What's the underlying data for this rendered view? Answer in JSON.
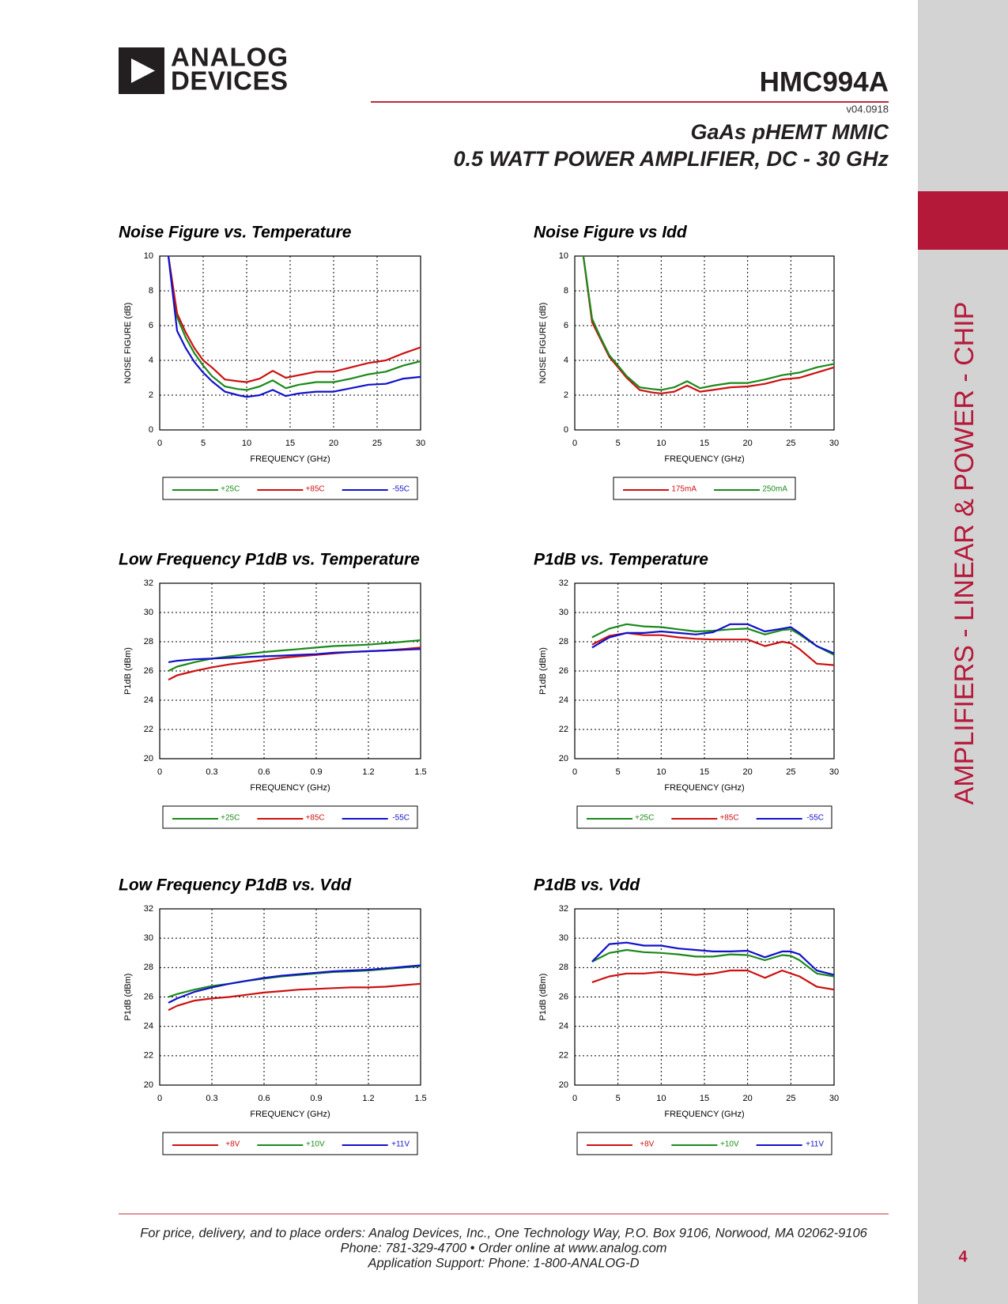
{
  "header": {
    "logo_line1": "ANALOG",
    "logo_line2": "DEVICES",
    "part": "HMC994A",
    "version": "v04.0918",
    "subtitle1": "GaAs pHEMT MMIC",
    "subtitle2": "0.5 WATT POWER AMPLIFIER, DC - 30 GHz"
  },
  "sidebar": {
    "section": "AMPLIFIERS - LINEAR & POWER - CHIP",
    "page": "4"
  },
  "footer": {
    "lines": [
      "For price, delivery, and to place orders: Analog Devices, Inc., One Technology Way, P.O. Box 9106, Norwood, MA 02062-9106",
      "Phone: 781-329-4700 • Order online at www.analog.com",
      "Application Support: Phone: 1-800-ANALOG-D"
    ]
  },
  "chart_data": [
    {
      "type": "line",
      "title": "Noise Figure vs. Temperature",
      "xlabel": "FREQUENCY (GHz)",
      "ylabel": "NOISE FIGURE (dB)",
      "grid": true,
      "legend": "bottom",
      "xlim": [
        0,
        30
      ],
      "ylim": [
        0,
        10
      ],
      "xticks": [
        0,
        5,
        10,
        15,
        20,
        25,
        30
      ],
      "yticks": [
        0,
        2,
        4,
        6,
        8,
        10
      ],
      "x": [
        1,
        2,
        3,
        4,
        5,
        6,
        7.5,
        9,
        10,
        11.5,
        13,
        14.5,
        16,
        18,
        20,
        22,
        24,
        26,
        28,
        30
      ],
      "series": [
        {
          "name": "+25C",
          "color": "#1a8a1a",
          "values": [
            10,
            6.5,
            5.3,
            4.4,
            3.7,
            3.1,
            2.5,
            2.35,
            2.3,
            2.5,
            2.85,
            2.4,
            2.6,
            2.75,
            2.75,
            2.95,
            3.2,
            3.35,
            3.7,
            3.95
          ]
        },
        {
          "name": "+85C",
          "color": "#cc1111",
          "values": [
            10,
            6.7,
            5.6,
            4.7,
            4.0,
            3.6,
            2.9,
            2.8,
            2.75,
            2.95,
            3.4,
            3.0,
            3.15,
            3.35,
            3.35,
            3.6,
            3.85,
            4.0,
            4.4,
            4.75
          ]
        },
        {
          "name": "-55C",
          "color": "#1111cc",
          "values": [
            10,
            5.7,
            4.7,
            3.9,
            3.3,
            2.8,
            2.2,
            2.0,
            1.9,
            2.0,
            2.3,
            1.95,
            2.1,
            2.2,
            2.2,
            2.4,
            2.6,
            2.65,
            2.95,
            3.05
          ]
        }
      ]
    },
    {
      "type": "line",
      "title": "Noise Figure vs Idd",
      "xlabel": "FREQUENCY (GHz)",
      "ylabel": "NOISE FIGURE (dB)",
      "grid": true,
      "legend": "bottom",
      "xlim": [
        0,
        30
      ],
      "ylim": [
        0,
        10
      ],
      "xticks": [
        0,
        5,
        10,
        15,
        20,
        25,
        30
      ],
      "yticks": [
        0,
        2,
        4,
        6,
        8,
        10
      ],
      "x": [
        1,
        2,
        3,
        4,
        5,
        6,
        7.5,
        9,
        10,
        11.5,
        13,
        14.5,
        16,
        18,
        20,
        22,
        24,
        26,
        28,
        30
      ],
      "series": [
        {
          "name": "175mA",
          "color": "#cc1111",
          "values": [
            10,
            6.2,
            5.2,
            4.2,
            3.6,
            3.0,
            2.3,
            2.15,
            2.1,
            2.2,
            2.55,
            2.2,
            2.3,
            2.45,
            2.5,
            2.65,
            2.9,
            3.0,
            3.3,
            3.6
          ]
        },
        {
          "name": "250mA",
          "color": "#1a8a1a",
          "values": [
            10,
            6.4,
            5.3,
            4.3,
            3.7,
            3.1,
            2.45,
            2.35,
            2.3,
            2.45,
            2.8,
            2.4,
            2.55,
            2.7,
            2.7,
            2.9,
            3.15,
            3.3,
            3.6,
            3.8
          ]
        }
      ]
    },
    {
      "type": "line",
      "title": "Low Frequency P1dB vs. Temperature",
      "xlabel": "FREQUENCY (GHz)",
      "ylabel": "P1dB (dBm)",
      "grid": true,
      "legend": "bottom",
      "xlim": [
        0,
        1.5
      ],
      "ylim": [
        20,
        32
      ],
      "xticks": [
        0,
        0.3,
        0.6,
        0.9,
        1.2,
        1.5
      ],
      "yticks": [
        20,
        22,
        24,
        26,
        28,
        30,
        32
      ],
      "x": [
        0.05,
        0.1,
        0.2,
        0.3,
        0.4,
        0.5,
        0.6,
        0.7,
        0.8,
        0.9,
        1.0,
        1.1,
        1.2,
        1.3,
        1.4,
        1.5
      ],
      "series": [
        {
          "name": "+25C",
          "color": "#1a8a1a",
          "values": [
            26.0,
            26.3,
            26.6,
            26.85,
            27.0,
            27.15,
            27.3,
            27.4,
            27.5,
            27.6,
            27.7,
            27.75,
            27.8,
            27.9,
            28.0,
            28.1
          ]
        },
        {
          "name": "+85C",
          "color": "#cc1111",
          "values": [
            25.4,
            25.7,
            26.0,
            26.25,
            26.45,
            26.6,
            26.75,
            26.9,
            27.0,
            27.1,
            27.2,
            27.3,
            27.35,
            27.4,
            27.5,
            27.6
          ]
        },
        {
          "name": "-55C",
          "color": "#1111cc",
          "values": [
            26.6,
            26.7,
            26.8,
            26.85,
            26.9,
            26.95,
            27.0,
            27.05,
            27.1,
            27.15,
            27.25,
            27.3,
            27.35,
            27.4,
            27.45,
            27.5
          ]
        }
      ]
    },
    {
      "type": "line",
      "title": "P1dB vs. Temperature",
      "xlabel": "FREQUENCY (GHz)",
      "ylabel": "P1dB (dBm)",
      "grid": true,
      "legend": "bottom",
      "xlim": [
        0,
        30
      ],
      "ylim": [
        20,
        32
      ],
      "xticks": [
        0,
        5,
        10,
        15,
        20,
        25,
        30
      ],
      "yticks": [
        20,
        22,
        24,
        26,
        28,
        30,
        32
      ],
      "x": [
        2,
        4,
        6,
        8,
        10,
        12,
        14,
        16,
        18,
        20,
        22,
        24,
        25,
        26,
        28,
        30
      ],
      "series": [
        {
          "name": "+25C",
          "color": "#1a8a1a",
          "values": [
            28.3,
            28.9,
            29.2,
            29.05,
            29.0,
            28.85,
            28.7,
            28.75,
            28.85,
            28.9,
            28.5,
            28.8,
            28.85,
            28.5,
            27.7,
            27.1
          ]
        },
        {
          "name": "+85C",
          "color": "#cc1111",
          "values": [
            27.8,
            28.4,
            28.6,
            28.45,
            28.45,
            28.3,
            28.2,
            28.15,
            28.15,
            28.15,
            27.7,
            28.0,
            27.9,
            27.5,
            26.5,
            26.4
          ]
        },
        {
          "name": "-55C",
          "color": "#1111cc",
          "values": [
            27.6,
            28.3,
            28.6,
            28.6,
            28.7,
            28.6,
            28.5,
            28.65,
            29.2,
            29.2,
            28.7,
            28.9,
            29.0,
            28.6,
            27.7,
            27.2
          ]
        }
      ]
    },
    {
      "type": "line",
      "title": "Low Frequency P1dB vs. Vdd",
      "xlabel": "FREQUENCY (GHz)",
      "ylabel": "P1dB (dBm)",
      "grid": true,
      "legend": "bottom",
      "xlim": [
        0,
        1.5
      ],
      "ylim": [
        20,
        32
      ],
      "xticks": [
        0,
        0.3,
        0.6,
        0.9,
        1.2,
        1.5
      ],
      "yticks": [
        20,
        22,
        24,
        26,
        28,
        30,
        32
      ],
      "x": [
        0.05,
        0.1,
        0.2,
        0.3,
        0.4,
        0.5,
        0.6,
        0.7,
        0.8,
        0.9,
        1.0,
        1.1,
        1.2,
        1.3,
        1.4,
        1.5
      ],
      "series": [
        {
          "name": "+8V",
          "color": "#cc1111",
          "values": [
            25.1,
            25.4,
            25.75,
            25.9,
            26.0,
            26.15,
            26.3,
            26.4,
            26.5,
            26.55,
            26.6,
            26.65,
            26.65,
            26.7,
            26.8,
            26.9
          ]
        },
        {
          "name": "+10V",
          "color": "#1a8a1a",
          "values": [
            26.0,
            26.2,
            26.5,
            26.75,
            26.9,
            27.1,
            27.25,
            27.4,
            27.5,
            27.6,
            27.7,
            27.75,
            27.8,
            27.9,
            28.0,
            28.1
          ]
        },
        {
          "name": "+11V",
          "color": "#1111cc",
          "values": [
            25.6,
            25.9,
            26.35,
            26.65,
            26.9,
            27.1,
            27.3,
            27.45,
            27.55,
            27.65,
            27.75,
            27.8,
            27.85,
            27.95,
            28.05,
            28.15
          ]
        }
      ]
    },
    {
      "type": "line",
      "title": "P1dB vs. Vdd",
      "xlabel": "FREQUENCY (GHz)",
      "ylabel": "P1dB (dBm)",
      "grid": true,
      "legend": "bottom",
      "xlim": [
        0,
        30
      ],
      "ylim": [
        20,
        32
      ],
      "xticks": [
        0,
        5,
        10,
        15,
        20,
        25,
        30
      ],
      "yticks": [
        20,
        22,
        24,
        26,
        28,
        30,
        32
      ],
      "x": [
        2,
        4,
        6,
        8,
        10,
        12,
        14,
        16,
        18,
        20,
        22,
        24,
        25,
        26,
        28,
        30
      ],
      "series": [
        {
          "name": "+8V",
          "color": "#cc1111",
          "values": [
            27.0,
            27.4,
            27.6,
            27.6,
            27.7,
            27.6,
            27.5,
            27.6,
            27.8,
            27.8,
            27.3,
            27.8,
            27.6,
            27.4,
            26.7,
            26.5
          ]
        },
        {
          "name": "+10V",
          "color": "#1a8a1a",
          "values": [
            28.4,
            29.0,
            29.2,
            29.05,
            29.0,
            28.9,
            28.75,
            28.75,
            28.9,
            28.85,
            28.5,
            28.85,
            28.8,
            28.5,
            27.6,
            27.4
          ]
        },
        {
          "name": "+11V",
          "color": "#1111cc",
          "values": [
            28.4,
            29.6,
            29.7,
            29.5,
            29.5,
            29.3,
            29.2,
            29.1,
            29.1,
            29.15,
            28.7,
            29.1,
            29.1,
            28.9,
            27.8,
            27.5
          ]
        }
      ]
    }
  ]
}
